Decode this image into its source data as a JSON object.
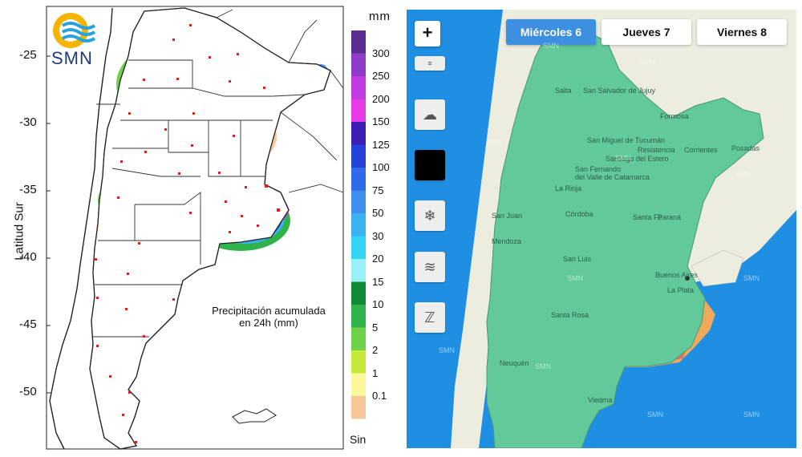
{
  "left_map": {
    "logo_text": "SMN",
    "y_axis_title": "Latitud Sur",
    "lat_ticks": [
      "-25",
      "-30",
      "-35",
      "-40",
      "-45",
      "-50"
    ],
    "unit": "mm",
    "caption_line1": "Precipitación acumulada",
    "caption_line2": "en 24h (mm)",
    "legend": [
      {
        "label": "300",
        "color": "#5c2d91"
      },
      {
        "label": "250",
        "color": "#8e3cc8"
      },
      {
        "label": "200",
        "color": "#c13ce0"
      },
      {
        "label": "150",
        "color": "#e63ce6"
      },
      {
        "label": "125",
        "color": "#3b1fb5"
      },
      {
        "label": "100",
        "color": "#2342d8"
      },
      {
        "label": "75",
        "color": "#2f6be8"
      },
      {
        "label": "50",
        "color": "#3f8ff0"
      },
      {
        "label": "30",
        "color": "#3ab2f0"
      },
      {
        "label": "20",
        "color": "#33d3f3"
      },
      {
        "label": "15",
        "color": "#99f2f8"
      },
      {
        "label": "10",
        "color": "#0f8a35"
      },
      {
        "label": "5",
        "color": "#2fb34a"
      },
      {
        "label": "2",
        "color": "#6ed14a"
      },
      {
        "label": "1",
        "color": "#c5e83a"
      },
      {
        "label": "0.1",
        "color": "#fbf79a"
      },
      {
        "label": "",
        "color": "#f7c79a"
      }
    ],
    "no_data_label": "Sin"
  },
  "right_map": {
    "zoom_in_label": "+",
    "tabs": [
      {
        "label": "Miércoles 6",
        "active": true
      },
      {
        "label": "Jueves 7",
        "active": false
      },
      {
        "label": "Viernes 8",
        "active": false
      }
    ],
    "tools": [
      "storm-icon",
      "color-swatch",
      "snow-icon",
      "wind-icon",
      "temperature-icon"
    ],
    "colors": {
      "sea": "#1f8fe3",
      "normal": "#62c99a",
      "alert_orange": "#f0a85a",
      "alert_red": "#de7070",
      "neighbor_land": "#ececdf"
    },
    "cities": [
      {
        "name": "Salta"
      },
      {
        "name": "San Salvador de Jujuy"
      },
      {
        "name": "Formosa"
      },
      {
        "name": "San Miguel de Tucumán"
      },
      {
        "name": "Resistencia"
      },
      {
        "name": "Corrientes"
      },
      {
        "name": "Posadas"
      },
      {
        "name": "Santiago del Estero"
      },
      {
        "name": "San Fernando"
      },
      {
        "name": "del Valle de Catamarca"
      },
      {
        "name": "La Rioja"
      },
      {
        "name": "San Juan"
      },
      {
        "name": "Córdoba"
      },
      {
        "name": "Santa Fe"
      },
      {
        "name": "Paraná"
      },
      {
        "name": "Mendoza"
      },
      {
        "name": "San Luis"
      },
      {
        "name": "Buenos Aires"
      },
      {
        "name": "La Plata"
      },
      {
        "name": "Santa Rosa"
      },
      {
        "name": "Neuquén"
      },
      {
        "name": "Viedma"
      }
    ],
    "watermark": "SMN"
  }
}
